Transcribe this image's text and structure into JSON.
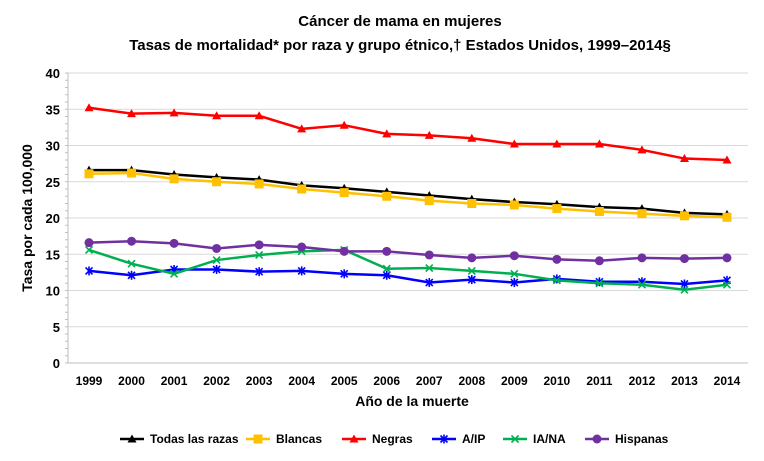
{
  "chart_data": {
    "type": "line",
    "title": "Cáncer de mama en mujeres",
    "subtitle": "Tasas de mortalidad* por raza y grupo étnico,† Estados Unidos, 1999–2014§",
    "xlabel": "Año de la muerte",
    "ylabel": "Tasa por cada 100,000",
    "ylim": [
      0,
      40
    ],
    "yticks": [
      0,
      5,
      10,
      15,
      20,
      25,
      30,
      35,
      40
    ],
    "grid": true,
    "legend_position": "bottom",
    "x": [
      1999,
      2000,
      2001,
      2002,
      2003,
      2004,
      2005,
      2006,
      2007,
      2008,
      2009,
      2010,
      2011,
      2012,
      2013,
      2014
    ],
    "series": [
      {
        "name": "Todas las razas",
        "color": "#000000",
        "marker": "triangle",
        "values": [
          26.6,
          26.6,
          26.0,
          25.6,
          25.3,
          24.5,
          24.1,
          23.6,
          23.1,
          22.6,
          22.2,
          21.9,
          21.5,
          21.3,
          20.7,
          20.5
        ]
      },
      {
        "name": "Blancas",
        "color": "#FFC000",
        "marker": "square",
        "values": [
          26.1,
          26.2,
          25.4,
          25.0,
          24.7,
          24.0,
          23.5,
          23.0,
          22.4,
          22.0,
          21.8,
          21.3,
          20.9,
          20.6,
          20.3,
          20.1
        ]
      },
      {
        "name": "Negras",
        "color": "#FF0000",
        "marker": "triangle",
        "values": [
          35.2,
          34.4,
          34.5,
          34.1,
          34.1,
          32.3,
          32.8,
          31.6,
          31.4,
          31.0,
          30.2,
          30.2,
          30.2,
          29.4,
          28.2,
          28.0
        ]
      },
      {
        "name": "A/IP",
        "color": "#0000FF",
        "marker": "star",
        "values": [
          12.7,
          12.1,
          12.9,
          12.9,
          12.6,
          12.7,
          12.3,
          12.1,
          11.1,
          11.5,
          11.1,
          11.6,
          11.2,
          11.2,
          10.9,
          11.4
        ]
      },
      {
        "name": "IA/NA",
        "color": "#00B050",
        "marker": "x",
        "values": [
          15.6,
          13.7,
          12.3,
          14.2,
          14.9,
          15.4,
          15.6,
          13.0,
          13.1,
          12.7,
          12.3,
          11.4,
          11.0,
          10.8,
          10.1,
          10.8
        ]
      },
      {
        "name": "Hispanas",
        "color": "#7030A0",
        "marker": "circle",
        "values": [
          16.6,
          16.8,
          16.5,
          15.8,
          16.3,
          16.0,
          15.4,
          15.4,
          14.9,
          14.5,
          14.8,
          14.3,
          14.1,
          14.5,
          14.4,
          14.5
        ]
      }
    ]
  }
}
